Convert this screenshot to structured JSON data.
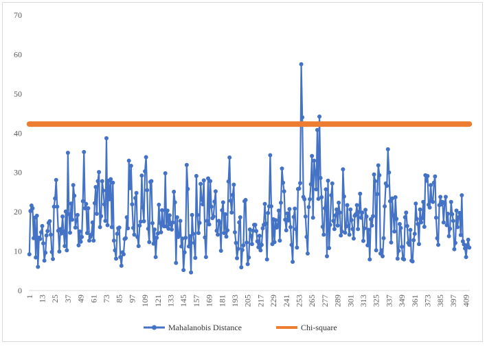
{
  "chart_data": {
    "type": "line",
    "title": "",
    "xlabel": "",
    "ylabel": "",
    "ylim": [
      0,
      70
    ],
    "yticks": [
      0,
      10,
      20,
      30,
      40,
      50,
      60,
      70
    ],
    "xtick_labels": [
      "1",
      "13",
      "25",
      "37",
      "49",
      "61",
      "73",
      "85",
      "97",
      "109",
      "121",
      "133",
      "145",
      "157",
      "169",
      "181",
      "193",
      "205",
      "217",
      "229",
      "241",
      "253",
      "265",
      "277",
      "289",
      "301",
      "313",
      "325",
      "337",
      "349",
      "361",
      "373",
      "385",
      "397",
      "409"
    ],
    "grid": false,
    "legend_position": "bottom",
    "colors": {
      "Mahalanobis Distance": "#4472c4",
      "Chi-square": "#ed7d31"
    },
    "x_start": 1,
    "series": [
      {
        "name": "Mahalanobis Distance",
        "marker": "circle",
        "values": [
          9.2,
          20.2,
          21.6,
          20.9,
          13.3,
          18.5,
          8.4,
          19.0,
          6.0,
          13.4,
          13.1,
          14.8,
          16.4,
          12.0,
          7.6,
          9.6,
          14.0,
          15.1,
          17.2,
          17.6,
          14.2,
          9.8,
          8.0,
          21.3,
          23.4,
          28.1,
          21.3,
          15.2,
          9.9,
          15.6,
          14.5,
          18.8,
          15.0,
          11.3,
          20.1,
          10.2,
          35.0,
          19.4,
          14.7,
          22.1,
          18.0,
          26.8,
          24.1,
          16.0,
          17.8,
          19.2,
          11.5,
          15.0,
          12.4,
          13.6,
          22.7,
          35.2,
          20.9,
          22.0,
          14.6,
          20.9,
          12.7,
          13.6,
          14.2,
          17.3,
          12.7,
          22.2,
          26.3,
          19.5,
          27.8,
          30.1,
          16.1,
          18.9,
          27.8,
          25.4,
          21.9,
          17.7,
          38.7,
          16.6,
          27.9,
          23.2,
          28.3,
          16.1,
          27.4,
          12.7,
          10.2,
          8.1,
          14.4,
          15.8,
          16.0,
          8.5,
          6.3,
          9.7,
          9.2,
          13.1,
          13.3,
          18.6,
          15.8,
          33.0,
          26.0,
          31.7,
          21.9,
          15.9,
          14.2,
          23.5,
          24.8,
          13.6,
          11.3,
          16.5,
          17.5,
          29.2,
          21.1,
          17.6,
          30.3,
          33.9,
          25.5,
          15.7,
          12.3,
          27.6,
          27.8,
          17.1,
          11.9,
          15.5,
          8.5,
          13.4,
          14.5,
          21.8,
          17.2,
          14.8,
          20.4,
          16.5,
          16.3,
          29.8,
          16.3,
          20.3,
          15.7,
          19.1,
          16.8,
          15.5,
          17.3,
          25.1,
          22.4,
          7.0,
          18.6,
          13.6,
          14.2,
          17.7,
          11.2,
          13.2,
          5.2,
          9.7,
          13.4,
          31.9,
          25.8,
          11.2,
          13.8,
          4.6,
          19.2,
          14.4,
          12.1,
          8.3,
          29.1,
          19.2,
          14.6,
          17.2,
          27.1,
          23.1,
          21.9,
          28.0,
          13.5,
          8.5,
          17.7,
          28.5,
          16.8,
          27.8,
          21.3,
          18.4,
          18.8,
          22.6,
          25.2,
          15.2,
          14.2,
          17.7,
          17.2,
          10.1,
          20.4,
          22.4,
          14.6,
          19.4,
          13.7,
          15.3,
          27.7,
          33.8,
          22.8,
          19.8,
          24.3,
          26.9,
          14.8,
          12.1,
          8.2,
          10.6,
          17.3,
          18.6,
          5.9,
          10.3,
          11.5,
          22.7,
          23.0,
          12.2,
          6.7,
          8.4,
          15.5,
          13.9,
          11.8,
          15.2,
          16.7,
          16.7,
          15.1,
          12.5,
          11.0,
          13.9,
          10.2,
          11.6,
          15.8,
          16.7,
          22.0,
          17.0,
          7.9,
          19.7,
          21.4,
          34.4,
          21.4,
          11.8,
          18.1,
          12.3,
          17.9,
          16.0,
          16.6,
          20.3,
          12.7,
          22.3,
          31.0,
          27.4,
          25.2,
          18.0,
          15.3,
          19.6,
          17.8,
          20.7,
          16.1,
          11.6,
          7.3,
          18.7,
          20.8,
          15.6,
          10.9,
          25.8,
          25.9,
          27.3,
          57.5,
          44.0,
          23.8,
          23.2,
          18.8,
          13.6,
          9.4,
          21.2,
          23.2,
          27.0,
          34.2,
          18.5,
          33.0,
          30.2,
          25.7,
          40.8,
          23.3,
          44.2,
          28.6,
          23.7,
          16.2,
          14.2,
          20.9,
          25.7,
          8.7,
          27.9,
          10.8,
          16.7,
          24.2,
          27.2,
          17.7,
          15.6,
          19.1,
          20.6,
          16.5,
          22.3,
          19.8,
          14.0,
          15.0,
          30.8,
          23.9,
          14.7,
          16.3,
          21.7,
          16.4,
          14.2,
          20.6,
          17.9,
          15.6,
          13.2,
          19.0,
          19.4,
          21.7,
          15.6,
          20.0,
          24.6,
          18.5,
          19.8,
          12.6,
          15.8,
          20.5,
          18.8,
          11.5,
          15.4,
          7.9,
          18.1,
          16.5,
          18.9,
          29.5,
          27.8,
          10.2,
          24.5,
          31.8,
          29.3,
          9.4,
          10.2,
          8.7,
          13.3,
          21.4,
          27.2,
          26.6,
          35.9,
          30.0,
          22.7,
          12.2,
          23.4,
          19.1,
          15.0,
          23.7,
          18.2,
          8.1,
          10.1,
          16.9,
          15.9,
          11.1,
          8.1,
          7.9,
          18.6,
          19.8,
          16.4,
          12.1,
          11.6,
          15.4,
          7.6,
          7.4,
          12.8,
          14.4,
          22.1,
          18.2,
          16.9,
          11.8,
          20.6,
          17.3,
          18.4,
          22.5,
          16.2,
          29.3,
          27.9,
          29.1,
          21.8,
          21.1,
          26.8,
          22.7,
          22.5,
          27.4,
          29.0,
          18.5,
          13.3,
          11.6,
          21.7,
          23.8,
          21.9,
          22.5,
          17.3,
          22.2,
          23.8,
          16.6,
          19.5,
          13.8,
          15.7,
          22.5,
          19.4,
          17.7,
          10.5,
          12.1,
          20.3,
          16.1,
          18.6,
          19.7,
          14.1,
          24.2,
          12.5,
          11.7,
          10.7,
          8.5,
          11.5,
          12.9,
          10.9
        ]
      },
      {
        "name": "Chi-square",
        "marker": "none",
        "values_constant": 42.3
      }
    ]
  }
}
